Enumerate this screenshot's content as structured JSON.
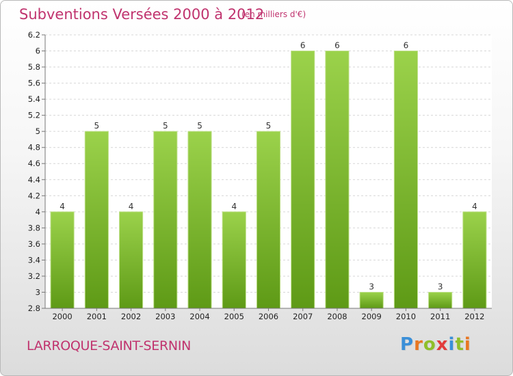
{
  "header": {
    "title": "Subventions Versées 2000 à 2012",
    "unit": "(en milliers d'€)"
  },
  "footer": {
    "commune": "LARROQUE-SAINT-SERNIN",
    "logo_letters": [
      "P",
      "r",
      "o",
      "x",
      "i",
      "t",
      "i"
    ],
    "logo_colors": [
      "#3a8fd8",
      "#e87722",
      "#8fbf2a",
      "#e23b3b",
      "#3a8fd8",
      "#8fbf2a",
      "#e87722"
    ]
  },
  "chart_data": {
    "type": "bar",
    "title": "Subventions Versées 2000 à 2012",
    "categories": [
      "2000",
      "2001",
      "2002",
      "2003",
      "2004",
      "2005",
      "2006",
      "2007",
      "2008",
      "2009",
      "2010",
      "2011",
      "2012"
    ],
    "values": [
      4,
      5,
      4,
      5,
      5,
      4,
      5,
      6,
      6,
      3,
      6,
      3,
      4
    ],
    "data_labels": [
      "4",
      "5",
      "4",
      "5",
      "5",
      "4",
      "5",
      "6",
      "6",
      "3",
      "6",
      "3",
      "4"
    ],
    "ylim": [
      2.8,
      6.2
    ],
    "yticks": [
      "2.8",
      "3",
      "3.2",
      "3.4",
      "3.6",
      "3.8",
      "4",
      "4.2",
      "4.4",
      "4.6",
      "4.8",
      "5",
      "5.2",
      "5.4",
      "5.6",
      "5.8",
      "6",
      "6.2"
    ],
    "grid": true,
    "bar_color": "#8cc63f"
  }
}
